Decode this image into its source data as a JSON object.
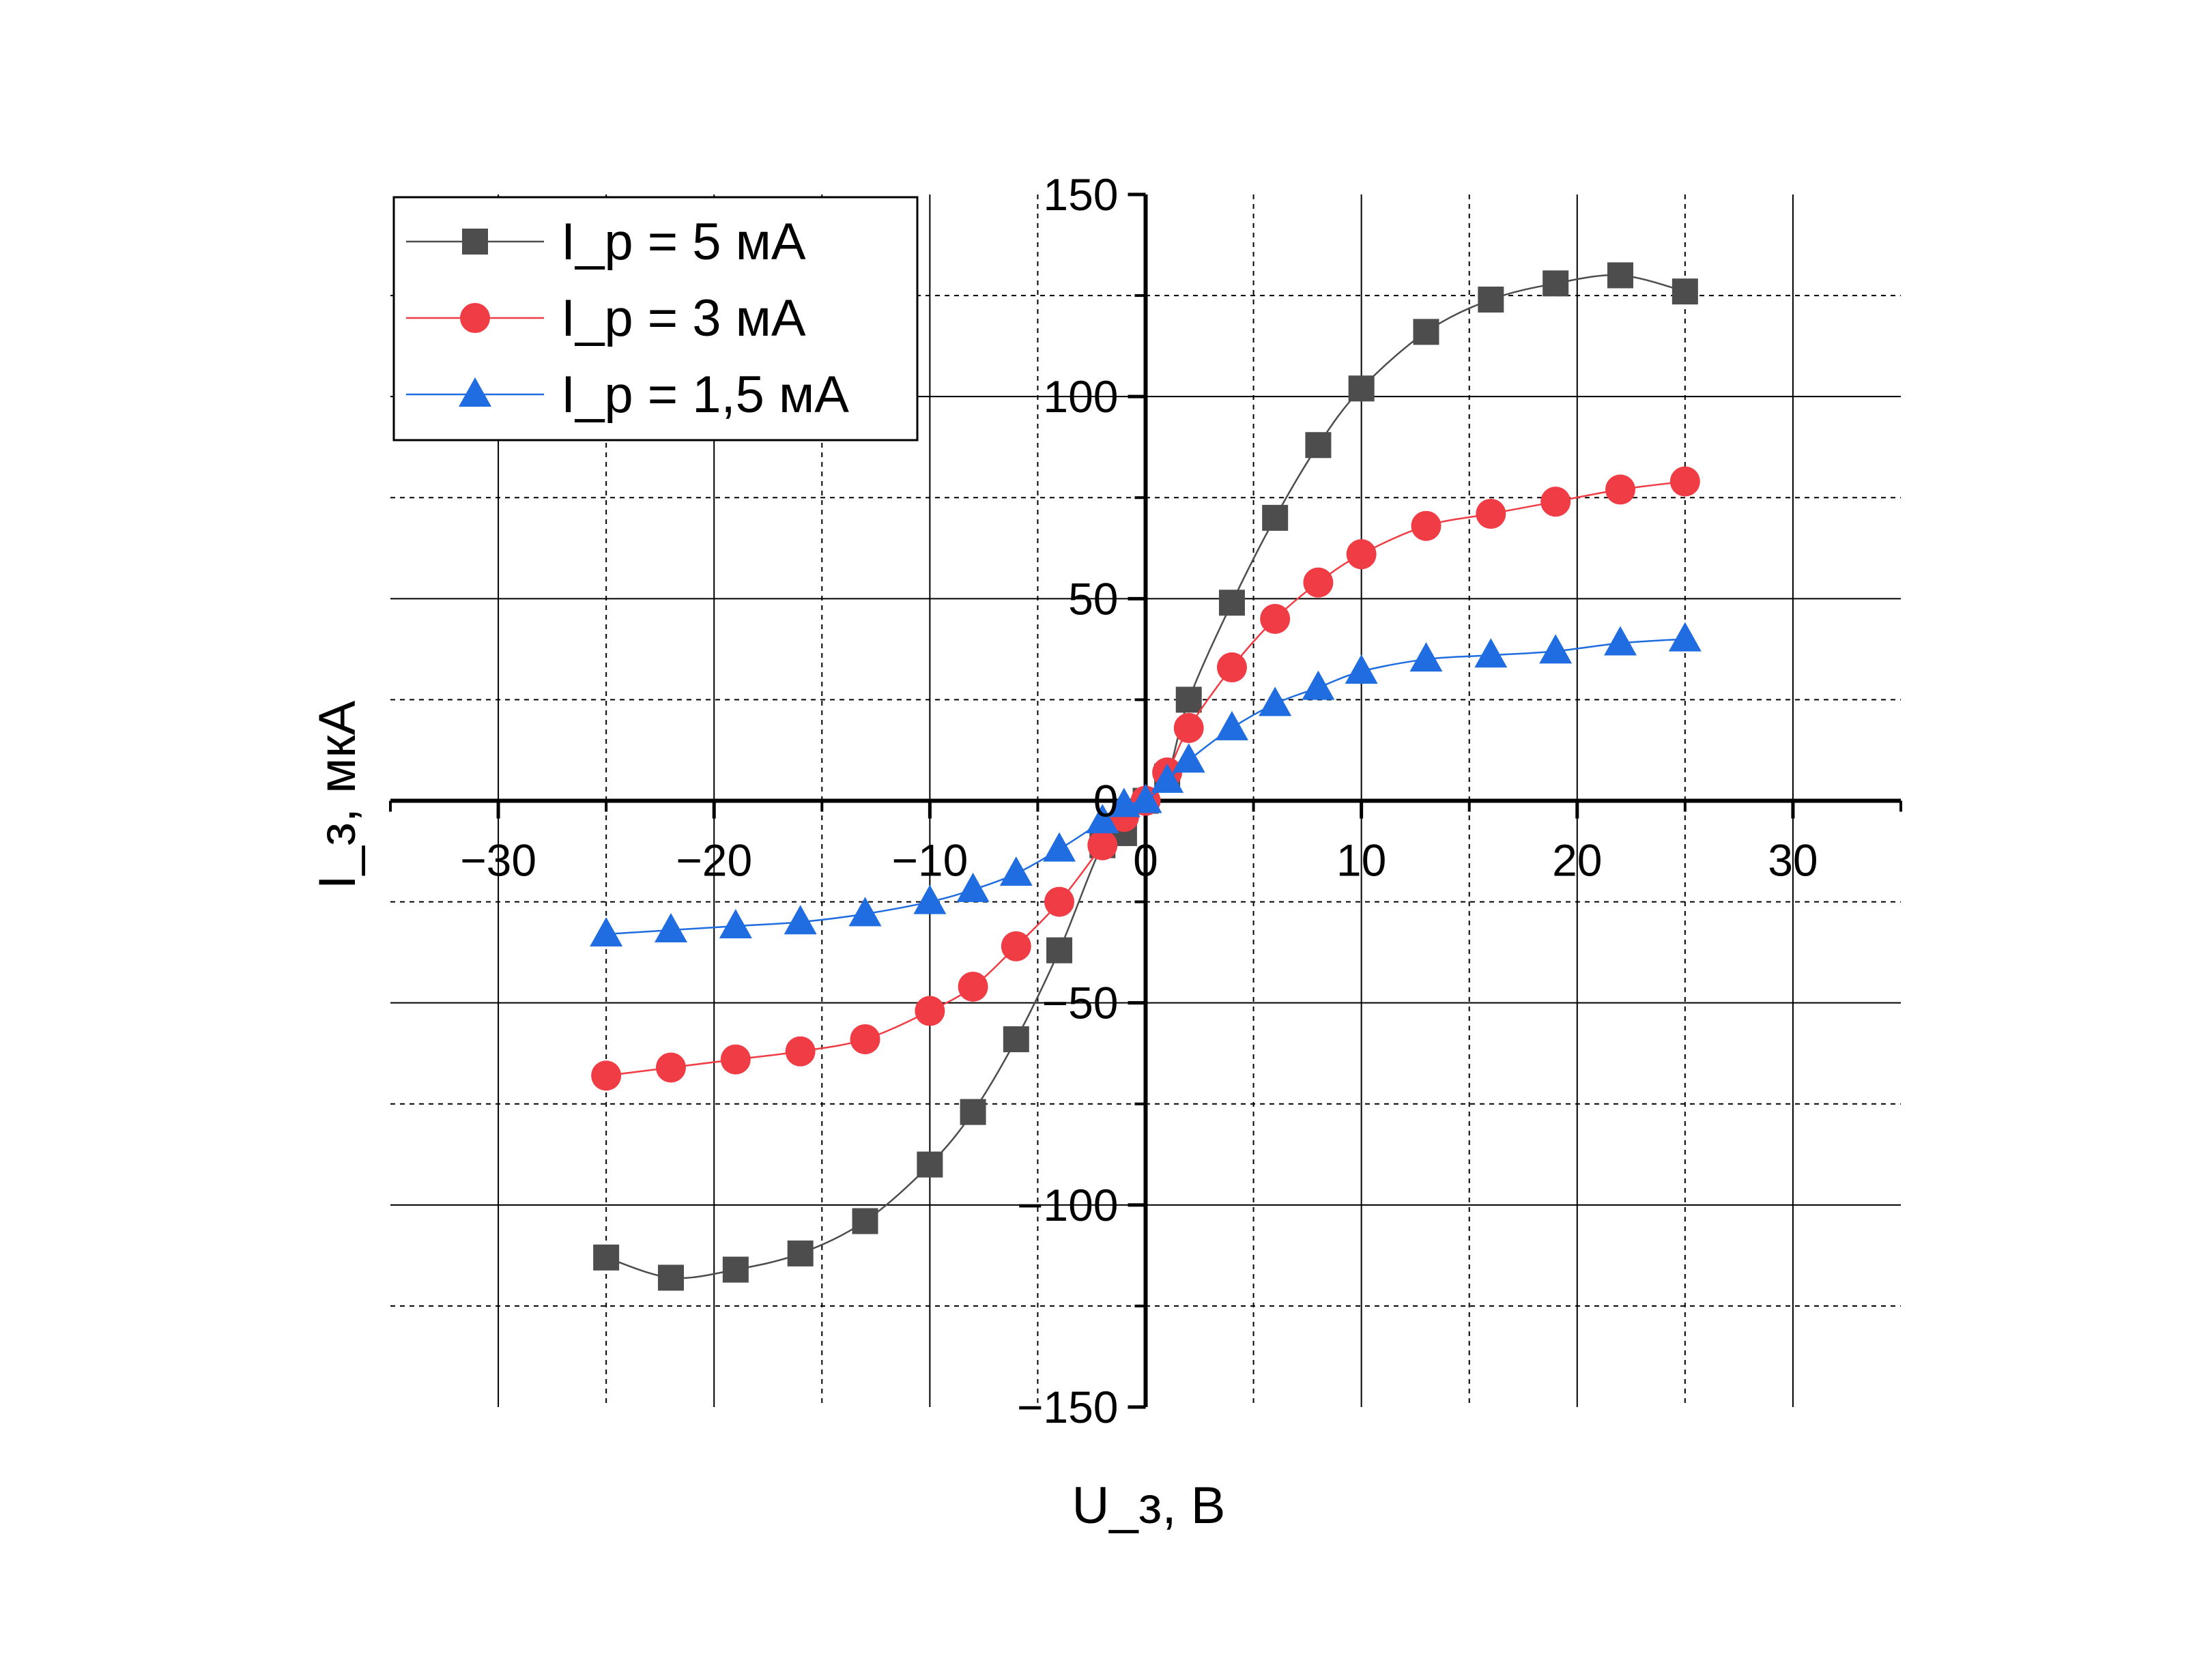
{
  "chart_data": {
    "type": "line",
    "title": "",
    "xlabel": "U_з, В",
    "ylabel": "I_з, мкА",
    "xlim": [
      -35,
      35
    ],
    "ylim": [
      -150,
      150
    ],
    "xticks": [
      -30,
      -20,
      -10,
      0,
      10,
      20,
      30
    ],
    "yticks": [
      -150,
      -100,
      -50,
      0,
      50,
      100,
      150
    ],
    "xtick_labels": [
      "−30",
      "−20",
      "−10",
      "0",
      "10",
      "20",
      "30"
    ],
    "ytick_labels": [
      "−150",
      "−100",
      "−50",
      "0",
      "50",
      "100",
      "150"
    ],
    "grid": true,
    "legend": "top-left",
    "x": [
      -25,
      -22,
      -19,
      -16,
      -13,
      -10,
      -8,
      -6,
      -4,
      -2,
      -1,
      0,
      1,
      2,
      4,
      6,
      8,
      10,
      13,
      16,
      19,
      22,
      25
    ],
    "series": [
      {
        "name": "I_р = 5 мА",
        "color": "#4d4d4d",
        "marker": "square",
        "values": [
          -113,
          -118,
          -116,
          -112,
          -104,
          -90,
          -77,
          -59,
          -37,
          -11,
          -8,
          0,
          6,
          25,
          49,
          70,
          88,
          102,
          116,
          124,
          128,
          130,
          126
        ]
      },
      {
        "name": "I_р = 3 мА",
        "color": "#f03c44",
        "marker": "circle",
        "values": [
          -68,
          -66,
          -64,
          -62,
          -59,
          -52,
          -46,
          -36,
          -25,
          -11,
          -4,
          0,
          7,
          18,
          33,
          45,
          54,
          61,
          68,
          71,
          74,
          77,
          79
        ]
      },
      {
        "name": "I_р = 1,5 мА",
        "color": "#1f6de0",
        "marker": "triangle",
        "values": [
          -33,
          -32,
          -31,
          -30,
          -28,
          -25,
          -22,
          -18,
          -12,
          -5,
          -1,
          0,
          5,
          10,
          18,
          24,
          28,
          32,
          35,
          36,
          37,
          39,
          40
        ]
      }
    ]
  }
}
